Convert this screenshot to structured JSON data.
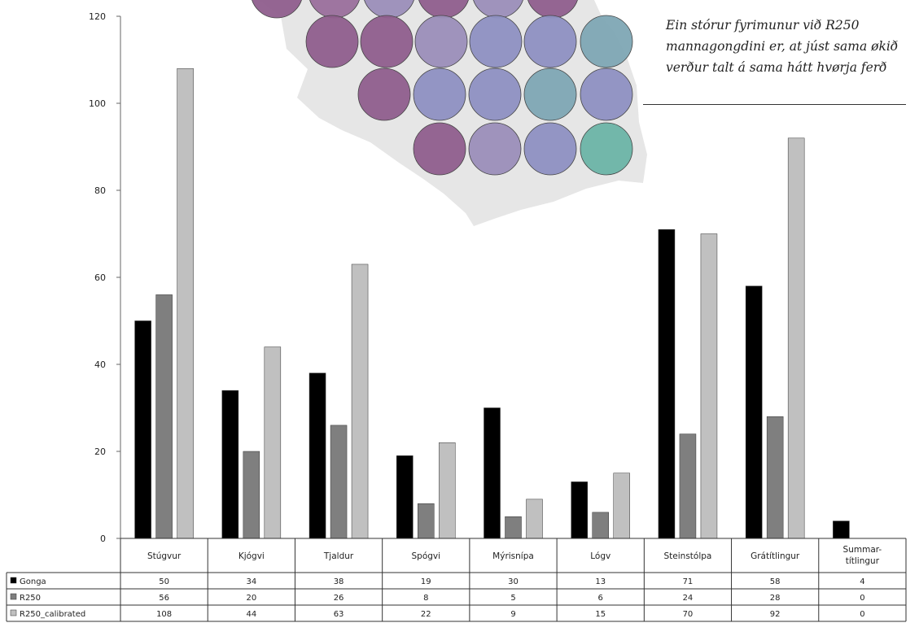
{
  "chart_data": {
    "type": "bar",
    "categories": [
      "Stúgvur",
      "Kjógvi",
      "Tjaldur",
      "Spógvi",
      "Mýrisnípa",
      "Lógv",
      "Steinstólpa",
      "Grátítlingur",
      "Summar-títlingur"
    ],
    "series": [
      {
        "name": "Gonga",
        "values": [
          50,
          34,
          38,
          19,
          30,
          13,
          71,
          58,
          4
        ],
        "color": "#000000"
      },
      {
        "name": "R250",
        "values": [
          56,
          20,
          26,
          8,
          5,
          6,
          24,
          28,
          0
        ],
        "color": "#7f7f7f"
      },
      {
        "name": "R250_calibrated",
        "values": [
          108,
          44,
          63,
          22,
          9,
          15,
          70,
          92,
          0
        ],
        "color": "#c0c0c0"
      }
    ],
    "ylim": [
      0,
      120
    ],
    "yticks": [
      0,
      20,
      40,
      60,
      80,
      100,
      120
    ],
    "title": "",
    "xlabel": "",
    "ylabel": "",
    "legend": "data-table",
    "grid": false
  },
  "annotation": {
    "text": "Ein stórur fyrimunur við R250 mannagongdini er, at júst sama økið verður talt á sama hátt hvørja ferð"
  },
  "colors": {
    "map_land": "#e6e6e6",
    "circle_palette": [
      "#8f5e8d",
      "#9a6f9c",
      "#9b8eb9",
      "#8e90c2",
      "#7ea6b4",
      "#6bb4a6"
    ]
  }
}
